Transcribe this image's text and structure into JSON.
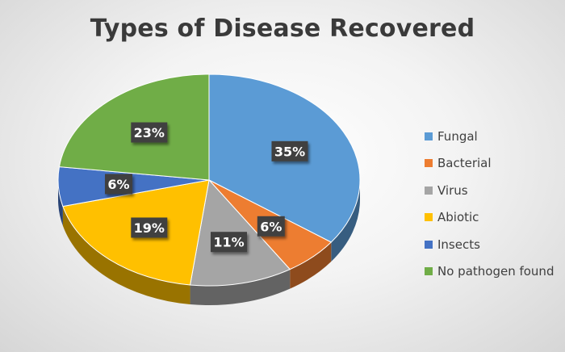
{
  "chart_data": {
    "type": "pie",
    "title": "Types of Disease Recovered",
    "categories": [
      "Fungal",
      "Bacterial",
      "Virus",
      "Abiotic",
      "Insects",
      "No pathogen found"
    ],
    "values": [
      35,
      6,
      11,
      19,
      6,
      23
    ],
    "data_labels": [
      "35%",
      "6%",
      "11%",
      "19%",
      "6%",
      "23%"
    ],
    "colors": [
      "#5b9bd5",
      "#ed7d31",
      "#a5a5a5",
      "#ffc000",
      "#4472c4",
      "#70ad47"
    ],
    "legend_position": "right",
    "style": "3d"
  }
}
